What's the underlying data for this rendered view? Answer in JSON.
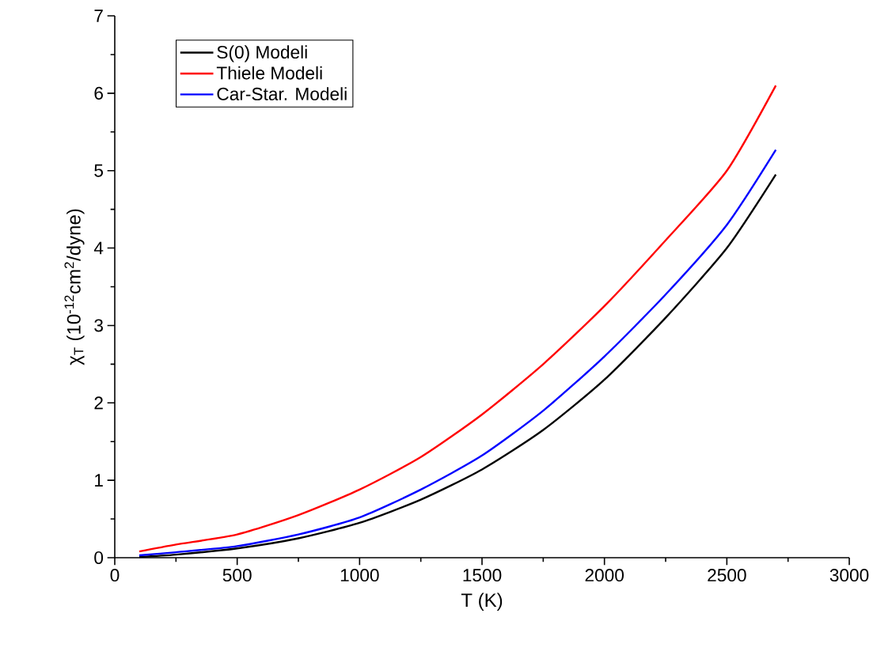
{
  "chart_data": {
    "type": "line",
    "xlabel": "T (K)",
    "ylabel": "χ$_{T}$ (10$^{-12}$cm$^{2}$/dyne)",
    "x": [
      100,
      250,
      500,
      750,
      1000,
      1250,
      1500,
      1750,
      2000,
      2250,
      2500,
      2700
    ],
    "series": [
      {
        "name": "S(0) Modeli",
        "color": "#000000",
        "values": [
          0.01,
          0.04,
          0.12,
          0.25,
          0.45,
          0.75,
          1.14,
          1.65,
          2.3,
          3.1,
          4.0,
          4.95
        ]
      },
      {
        "name": "Thiele Modeli",
        "color": "#ff0000",
        "values": [
          0.08,
          0.17,
          0.3,
          0.55,
          0.88,
          1.3,
          1.85,
          2.5,
          3.25,
          4.1,
          5.0,
          6.1
        ]
      },
      {
        "name": "Car-Star. Modeli",
        "color": "#0000ff",
        "values": [
          0.03,
          0.07,
          0.15,
          0.3,
          0.52,
          0.88,
          1.32,
          1.9,
          2.6,
          3.4,
          4.3,
          5.27
        ]
      }
    ],
    "xlim": [
      0,
      3000
    ],
    "ylim": [
      0,
      7
    ],
    "xticks": [
      0,
      500,
      1000,
      1500,
      2000,
      2500,
      3000
    ],
    "yticks": [
      0,
      1,
      2,
      3,
      4,
      5,
      6,
      7
    ],
    "legend": "top left",
    "grid": false,
    "marker": "none",
    "line_style": "solid"
  }
}
